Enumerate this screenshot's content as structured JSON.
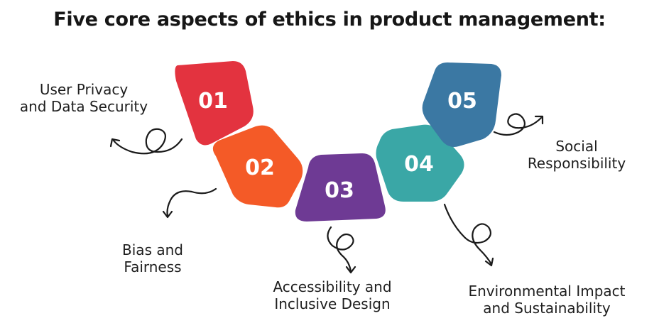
{
  "title": "Five core aspects of ethics in product management:",
  "colors": {
    "step1": "#e3333f",
    "step2": "#f45a27",
    "step3": "#6e3a94",
    "step4": "#3aa7a6",
    "step5": "#3b78a3",
    "arrow": "#1a1a1a"
  },
  "steps": [
    {
      "number": "01",
      "label": "User Privacy\nand Data Security"
    },
    {
      "number": "02",
      "label": "Bias and\nFairness"
    },
    {
      "number": "03",
      "label": "Accessibility and\nInclusive Design"
    },
    {
      "number": "04",
      "label": "Environmental Impact\nand Sustainability"
    },
    {
      "number": "05",
      "label": "Social\nResponsibility"
    }
  ]
}
